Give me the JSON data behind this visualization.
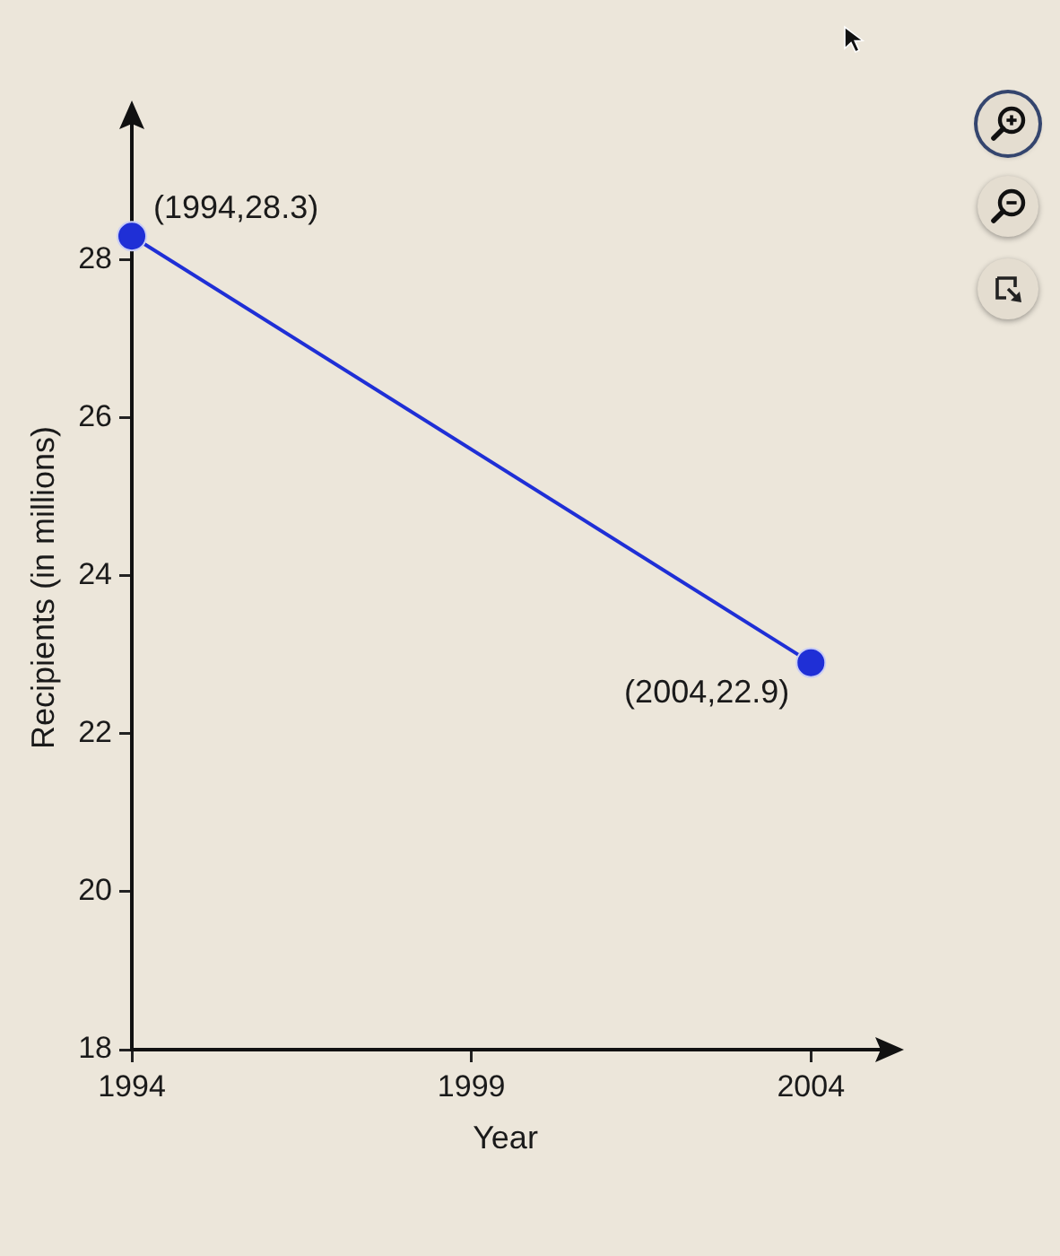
{
  "chart_data": {
    "type": "line",
    "xlabel": "Year",
    "ylabel": "Recipients (in millions)",
    "x": [
      1994,
      2004
    ],
    "series": [
      {
        "color": "#1f2fd6",
        "values": [
          28.3,
          22.9
        ]
      }
    ],
    "xlim": [
      1994,
      2005
    ],
    "xticks": [
      1994,
      1999,
      2004
    ],
    "ylim": [
      18,
      29.7
    ],
    "yticks": [
      18,
      20,
      22,
      24,
      26,
      28
    ],
    "legend": false,
    "marker": "circle",
    "line_style": "solid",
    "annotations": [
      {
        "text": "(1994,28.3)",
        "x": 1994,
        "y": 28.3
      },
      {
        "text": "(2004,22.9)",
        "x": 2004,
        "y": 22.9
      }
    ]
  }
}
